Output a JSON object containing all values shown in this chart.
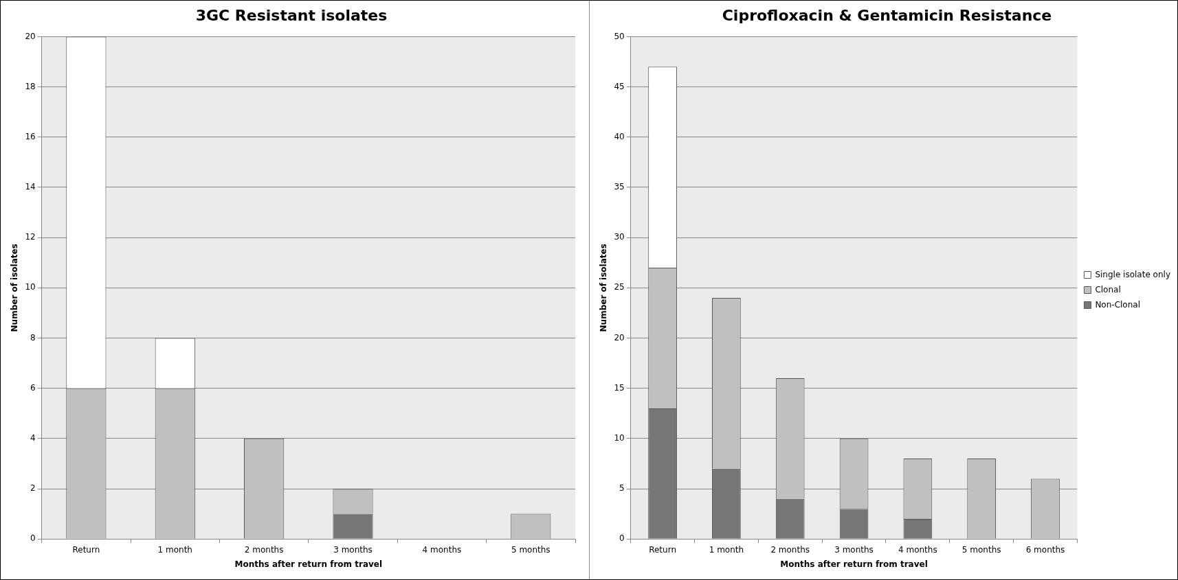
{
  "chart_data": [
    {
      "type": "bar",
      "title": "3GC Resistant isolates",
      "xlabel": "Months after return from travel",
      "ylabel": "Number of isolates",
      "categories": [
        "Return",
        "1 month",
        "2 months",
        "3 months",
        "4 months",
        "5 months"
      ],
      "stacked": true,
      "ylim": [
        0,
        20
      ],
      "yticks": [
        0,
        2,
        4,
        6,
        8,
        10,
        12,
        14,
        16,
        18,
        20
      ],
      "grid": "y",
      "legend": false,
      "series": [
        {
          "color": "#767676",
          "values": [
            0,
            0,
            0,
            1,
            0,
            0
          ]
        },
        {
          "color": "#c0c0c0",
          "values": [
            6,
            6,
            4,
            1,
            0,
            1
          ]
        },
        {
          "color": "#ffffff",
          "values": [
            14,
            2,
            0,
            0,
            0,
            0
          ]
        }
      ]
    },
    {
      "type": "bar",
      "title": "Ciprofloxacin & Gentamicin Resistance",
      "xlabel": "Months after return from travel",
      "ylabel": "Number of isolates",
      "categories": [
        "Return",
        "1 month",
        "2 months",
        "3 months",
        "4 months",
        "5 months",
        "6 months"
      ],
      "stacked": true,
      "ylim": [
        0,
        50
      ],
      "yticks": [
        0,
        5,
        10,
        15,
        20,
        25,
        30,
        35,
        40,
        45,
        50
      ],
      "grid": "y",
      "legend": "right",
      "series": [
        {
          "name": "Non-Clonal",
          "color": "#767676",
          "values": [
            13,
            7,
            4,
            3,
            2,
            0,
            0
          ]
        },
        {
          "name": "Clonal",
          "color": "#c0c0c0",
          "values": [
            14,
            17,
            12,
            7,
            6,
            8,
            6
          ]
        },
        {
          "name": "Single isolate only",
          "color": "#ffffff",
          "values": [
            20,
            0,
            0,
            0,
            0,
            0,
            0
          ]
        }
      ]
    }
  ]
}
